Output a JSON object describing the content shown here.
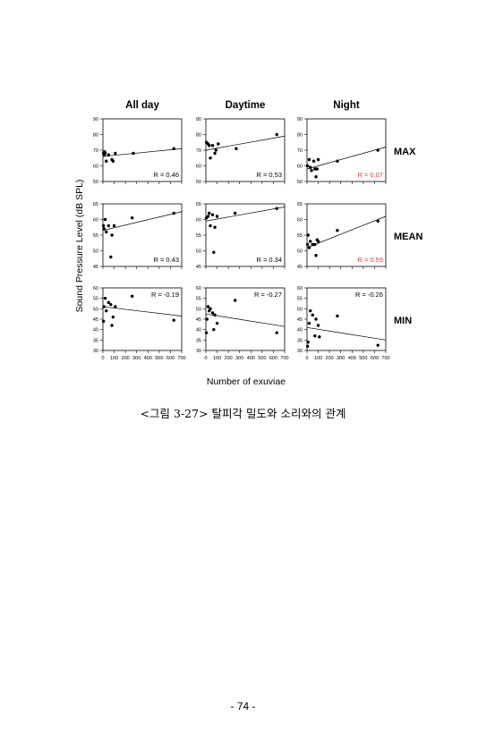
{
  "chart_data": {
    "type": "scatter",
    "xlabel": "Number  of exuviae",
    "ylabel": "Sound Pressure  Level (dB SPL)",
    "columns": [
      "All day",
      "Daytime",
      "Night"
    ],
    "rows": [
      "MAX",
      "MEAN",
      "MIN"
    ],
    "x_ticks": [
      "0",
      "100",
      "200",
      "300",
      "400",
      "500",
      "600",
      "700"
    ],
    "xlim": [
      0,
      700
    ],
    "panels": [
      {
        "row": "MAX",
        "column": "All day",
        "ylim": [
          50,
          90
        ],
        "yticks": [
          "50",
          "60",
          "70",
          "80",
          "90"
        ],
        "r_label": "R = 0.46",
        "r_color": "#000000",
        "r_pos": "bottom-right",
        "x": [
          5,
          10,
          15,
          20,
          30,
          50,
          80,
          90,
          110,
          270,
          630
        ],
        "y": [
          68,
          67,
          69,
          68,
          63,
          67,
          64,
          63,
          68,
          68,
          71
        ],
        "line": [
          [
            0,
            66
          ],
          [
            700,
            71
          ]
        ]
      },
      {
        "row": "MAX",
        "column": "Daytime",
        "ylim": [
          50,
          90
        ],
        "yticks": [
          "50",
          "60",
          "70",
          "80",
          "90"
        ],
        "r_label": "R = 0.53",
        "r_color": "#000000",
        "r_pos": "bottom-right",
        "x": [
          5,
          20,
          30,
          40,
          60,
          80,
          90,
          110,
          270,
          630
        ],
        "y": [
          75,
          74,
          73,
          65,
          73,
          68,
          70,
          74,
          71,
          80
        ],
        "line": [
          [
            0,
            70
          ],
          [
            700,
            79
          ]
        ]
      },
      {
        "row": "MAX",
        "column": "Night",
        "ylim": [
          50,
          90
        ],
        "yticks": [
          "50",
          "60",
          "70",
          "80",
          "90"
        ],
        "r_label": "R = 0.07",
        "r_color": "#e0403a",
        "r_pos": "bottom-right",
        "x": [
          5,
          20,
          30,
          40,
          60,
          70,
          80,
          90,
          100,
          270,
          630
        ],
        "y": [
          60,
          64,
          59,
          57,
          63,
          58,
          53,
          58,
          64,
          63,
          70
        ],
        "line": [
          [
            0,
            58
          ],
          [
            700,
            72
          ]
        ]
      },
      {
        "row": "MEAN",
        "column": "All day",
        "ylim": [
          45,
          65
        ],
        "yticks": [
          "45",
          "50",
          "55",
          "60",
          "65"
        ],
        "r_label": "R = 0.43",
        "r_color": "#000000",
        "r_pos": "bottom-right",
        "x": [
          5,
          10,
          20,
          30,
          50,
          70,
          80,
          100,
          260,
          630
        ],
        "y": [
          58,
          57,
          60,
          56,
          58,
          48,
          55,
          58,
          60.5,
          62
        ],
        "line": [
          [
            0,
            56.5
          ],
          [
            700,
            62.5
          ]
        ]
      },
      {
        "row": "MEAN",
        "column": "Daytime",
        "ylim": [
          45,
          65
        ],
        "yticks": [
          "45",
          "50",
          "55",
          "60",
          "65"
        ],
        "r_label": "R = 0.34",
        "r_color": "#000000",
        "r_pos": "bottom-right",
        "x": [
          5,
          20,
          30,
          40,
          60,
          70,
          80,
          100,
          260,
          630
        ],
        "y": [
          60.5,
          61,
          62,
          58,
          61.5,
          49.5,
          57.5,
          61,
          62,
          63.5
        ],
        "line": [
          [
            0,
            59.5
          ],
          [
            700,
            64
          ]
        ]
      },
      {
        "row": "MEAN",
        "column": "Night",
        "ylim": [
          45,
          65
        ],
        "yticks": [
          "45",
          "50",
          "55",
          "60",
          "65"
        ],
        "r_label": "R = 0.59",
        "r_color": "#e0403a",
        "r_pos": "bottom-right",
        "x": [
          5,
          10,
          20,
          30,
          50,
          70,
          80,
          90,
          100,
          270,
          630
        ],
        "y": [
          52,
          55,
          51,
          53,
          52,
          52,
          48.5,
          53.5,
          53,
          56.5,
          59.5
        ],
        "line": [
          [
            0,
            51
          ],
          [
            700,
            61
          ]
        ]
      },
      {
        "row": "MIN",
        "column": "All day",
        "ylim": [
          30,
          60
        ],
        "yticks": [
          "30",
          "35",
          "40",
          "45",
          "50",
          "55",
          "60"
        ],
        "r_label": "R = -0.19",
        "r_color": "#000000",
        "r_pos": "top-right",
        "x": [
          5,
          10,
          20,
          30,
          50,
          70,
          80,
          90,
          110,
          260,
          630
        ],
        "y": [
          44,
          51,
          55,
          49,
          53,
          52,
          42,
          46,
          51,
          56,
          44.5
        ],
        "line": [
          [
            0,
            51
          ],
          [
            700,
            46.5
          ]
        ]
      },
      {
        "row": "MIN",
        "column": "Daytime",
        "ylim": [
          30,
          60
        ],
        "yticks": [
          "30",
          "35",
          "40",
          "45",
          "50",
          "55",
          "60"
        ],
        "r_label": "R = -0.27",
        "r_color": "#000000",
        "r_pos": "top-right",
        "x": [
          5,
          10,
          20,
          30,
          40,
          60,
          70,
          80,
          100,
          260,
          630
        ],
        "y": [
          38.5,
          45,
          51,
          49,
          50,
          48,
          40,
          47,
          43,
          54,
          38.5
        ],
        "line": [
          [
            0,
            47.5
          ],
          [
            700,
            41.5
          ]
        ]
      },
      {
        "row": "MIN",
        "column": "Night",
        "ylim": [
          30,
          60
        ],
        "yticks": [
          "30",
          "35",
          "40",
          "45",
          "50",
          "55",
          "60"
        ],
        "r_label": "R = -0.26",
        "r_color": "#000000",
        "r_pos": "top-right",
        "x": [
          5,
          10,
          20,
          30,
          50,
          70,
          80,
          100,
          110,
          270,
          630
        ],
        "y": [
          32,
          34,
          43,
          49,
          47,
          37,
          45,
          42,
          36.5,
          46.5,
          32.5
        ],
        "line": [
          [
            0,
            41
          ],
          [
            700,
            35
          ]
        ]
      }
    ]
  },
  "caption": "<그림 3-27> 탈피각 밀도와 소리와의 관계",
  "page_number": "- 74 -"
}
